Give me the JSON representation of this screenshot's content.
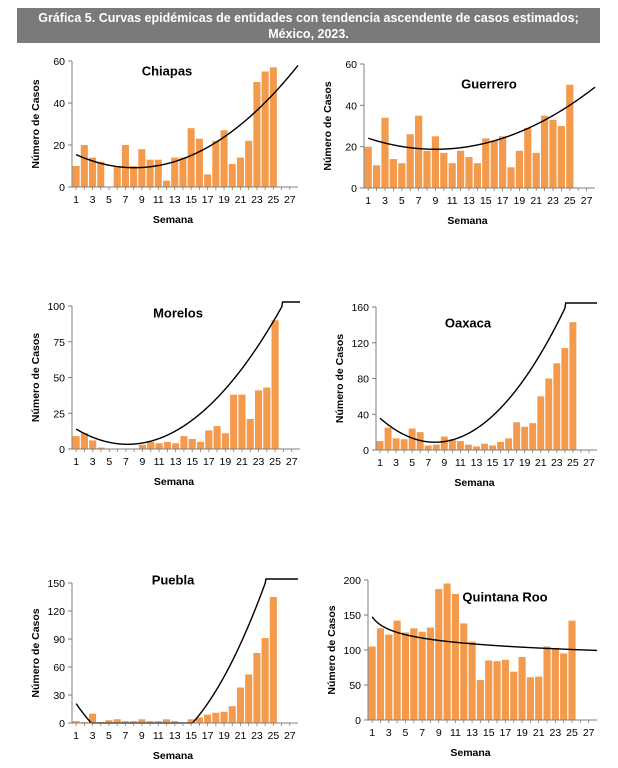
{
  "header": {
    "title_line1": "Gráfica 5. Curvas epidémicas de entidades con tendencia ascendente de casos estimados;",
    "title_line2": "México, 2023."
  },
  "colors": {
    "bar": "#f39a4c",
    "trend": "#000000",
    "header_bg": "#7a7a7a"
  },
  "chart_data": [
    {
      "type": "bar",
      "title": "Chiapas",
      "xlabel": "Semana",
      "ylabel": "Número de Casos",
      "ylim": [
        0,
        60
      ],
      "yticks": [
        "0",
        "20",
        "40",
        "60"
      ],
      "xticks": [
        "1",
        "3",
        "5",
        "7",
        "9",
        "11",
        "13",
        "15",
        "17",
        "19",
        "21",
        "23",
        "25",
        "27"
      ],
      "weeks": [
        1,
        2,
        3,
        4,
        5,
        6,
        7,
        8,
        9,
        10,
        11,
        12,
        13,
        14,
        15,
        16,
        17,
        18,
        19,
        20,
        21,
        22,
        23,
        24,
        25
      ],
      "values": [
        10,
        20,
        14,
        12,
        0,
        10,
        20,
        10,
        18,
        13,
        13,
        3,
        14,
        14,
        28,
        23,
        6,
        22,
        27,
        11,
        14,
        22,
        50,
        55,
        57
      ],
      "trend": {
        "kind": "poly2",
        "a": 0.1232,
        "b": -2.0,
        "c": 17.3
      }
    },
    {
      "type": "bar",
      "title": "Guerrero",
      "xlabel": "Semana",
      "ylabel": "Número de Casos",
      "ylim": [
        0,
        60
      ],
      "yticks": [
        "0",
        "20",
        "40",
        "60"
      ],
      "xticks": [
        "1",
        "3",
        "5",
        "7",
        "9",
        "11",
        "13",
        "15",
        "17",
        "19",
        "21",
        "23",
        "25",
        "27"
      ],
      "weeks": [
        1,
        2,
        3,
        4,
        5,
        6,
        7,
        8,
        9,
        10,
        11,
        12,
        13,
        14,
        15,
        16,
        17,
        18,
        19,
        20,
        21,
        22,
        23,
        24,
        25
      ],
      "values": [
        20,
        11,
        34,
        14,
        12,
        26,
        35,
        18,
        25,
        17,
        12,
        18,
        15,
        12,
        24,
        23,
        25,
        10,
        18,
        29,
        17,
        35,
        33,
        30,
        50
      ],
      "trend": {
        "kind": "poly2",
        "a": 0.0833,
        "b": -1.5,
        "c": 25.5
      }
    },
    {
      "type": "bar",
      "title": "Morelos",
      "xlabel": "Semana",
      "ylabel": "Número de Casos",
      "ylim": [
        0,
        100
      ],
      "yticks": [
        "0",
        "25",
        "50",
        "75",
        "100"
      ],
      "xticks": [
        "1",
        "3",
        "5",
        "7",
        "9",
        "11",
        "13",
        "15",
        "17",
        "19",
        "21",
        "23",
        "25",
        "27"
      ],
      "weeks": [
        1,
        2,
        3,
        4,
        5,
        6,
        7,
        8,
        9,
        10,
        11,
        12,
        13,
        14,
        15,
        16,
        17,
        18,
        19,
        20,
        21,
        22,
        23,
        24,
        25
      ],
      "values": [
        9,
        11,
        6,
        1,
        0,
        0,
        0,
        0,
        3,
        5,
        4,
        5,
        4,
        9,
        7,
        5,
        13,
        16,
        11,
        38,
        38,
        21,
        41,
        43,
        90
      ],
      "trend": {
        "kind": "poly2",
        "a": 0.2778,
        "b": -4.0,
        "c": 17.7
      }
    },
    {
      "type": "bar",
      "title": "Oaxaca",
      "xlabel": "Semana",
      "ylabel": "Número de Casos",
      "ylim": [
        0,
        160
      ],
      "yticks": [
        "0",
        "40",
        "80",
        "120",
        "160"
      ],
      "xticks": [
        "1",
        "3",
        "5",
        "7",
        "9",
        "11",
        "13",
        "15",
        "17",
        "19",
        "21",
        "23",
        "25",
        "27"
      ],
      "weeks": [
        1,
        2,
        3,
        4,
        5,
        6,
        7,
        8,
        9,
        10,
        11,
        12,
        13,
        14,
        15,
        16,
        17,
        18,
        19,
        20,
        21,
        22,
        23,
        24,
        25
      ],
      "values": [
        10,
        25,
        13,
        12,
        24,
        20,
        5,
        6,
        15,
        12,
        10,
        6,
        4,
        7,
        5,
        9,
        13,
        31,
        26,
        30,
        60,
        80,
        97,
        114,
        143
      ],
      "trend": {
        "kind": "poly2",
        "a": 0.5736,
        "b": -9.0,
        "c": 44.0
      }
    },
    {
      "type": "bar",
      "title": "Puebla",
      "xlabel": "Semana",
      "ylabel": "Número de Casos",
      "ylim": [
        0,
        150
      ],
      "yticks": [
        "0",
        "30",
        "60",
        "90",
        "120",
        "150"
      ],
      "xticks": [
        "1",
        "3",
        "5",
        "7",
        "9",
        "11",
        "13",
        "15",
        "17",
        "19",
        "21",
        "23",
        "25",
        "27"
      ],
      "weeks": [
        1,
        2,
        3,
        4,
        5,
        6,
        7,
        8,
        9,
        10,
        11,
        12,
        13,
        14,
        15,
        16,
        17,
        18,
        19,
        20,
        21,
        22,
        23,
        24,
        25
      ],
      "values": [
        2,
        1,
        10,
        1,
        3,
        4,
        2,
        2,
        4,
        2,
        2,
        4,
        2,
        0,
        4,
        6,
        9,
        11,
        12,
        18,
        38,
        52,
        75,
        91,
        135
      ],
      "trend": {
        "kind": "poly2",
        "a": 0.8,
        "b": -14.4,
        "c": 34.4
      }
    },
    {
      "type": "bar",
      "title": "Quintana Roo",
      "xlabel": "Semana",
      "ylabel": "Número de Casos",
      "ylim": [
        0,
        200
      ],
      "yticks": [
        "0",
        "50",
        "100",
        "150",
        "200"
      ],
      "xticks": [
        "1",
        "3",
        "5",
        "7",
        "9",
        "11",
        "13",
        "15",
        "17",
        "19",
        "21",
        "23",
        "25",
        "27"
      ],
      "weeks": [
        1,
        2,
        3,
        4,
        5,
        6,
        7,
        8,
        9,
        10,
        11,
        12,
        13,
        14,
        15,
        16,
        17,
        18,
        19,
        20,
        21,
        22,
        23,
        24,
        25
      ],
      "values": [
        105,
        131,
        122,
        142,
        125,
        131,
        126,
        132,
        187,
        195,
        180,
        138,
        112,
        57,
        85,
        84,
        86,
        69,
        90,
        61,
        62,
        105,
        103,
        95,
        142
      ],
      "trend": {
        "kind": "power",
        "a": 147.5,
        "b": -0.1185
      }
    }
  ]
}
